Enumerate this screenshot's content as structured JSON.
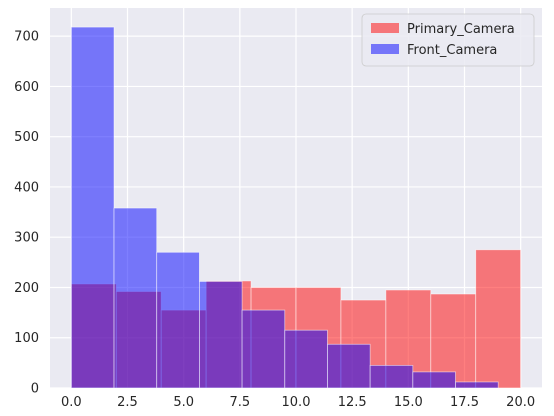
{
  "chart_data": {
    "type": "bar",
    "subtype": "overlaid-histogram",
    "title": "",
    "xlabel": "",
    "ylabel": "",
    "xlim": [
      -0.95,
      20.95
    ],
    "ylim": [
      0,
      756
    ],
    "x_ticks": [
      0.0,
      2.5,
      5.0,
      7.5,
      10.0,
      12.5,
      15.0,
      17.5,
      20.0
    ],
    "x_tick_labels": [
      "0.0",
      "2.5",
      "5.0",
      "7.5",
      "10.0",
      "12.5",
      "15.0",
      "17.5",
      "20.0"
    ],
    "y_ticks": [
      0,
      100,
      200,
      300,
      400,
      500,
      600,
      700
    ],
    "y_tick_labels": [
      "0",
      "100",
      "200",
      "300",
      "400",
      "500",
      "600",
      "700"
    ],
    "grid": true,
    "background": "#eaeaf2",
    "legend": {
      "placement": "top-right",
      "entries": [
        "Primary_Camera",
        "Front_Camera"
      ]
    },
    "series": [
      {
        "name": "Primary_Camera",
        "color": "#ff0000",
        "opacity": 0.5,
        "bin_edges": [
          0,
          2,
          4,
          6,
          8,
          10,
          12,
          14,
          16,
          18,
          20
        ],
        "values": [
          207,
          192,
          155,
          213,
          200,
          200,
          175,
          195,
          187,
          275
        ]
      },
      {
        "name": "Front_Camera",
        "color": "#0000ff",
        "opacity": 0.5,
        "bin_edges": [
          0,
          1.9,
          3.8,
          5.7,
          7.6,
          9.5,
          11.4,
          13.3,
          15.2,
          17.1,
          19.0
        ],
        "values": [
          718,
          358,
          270,
          212,
          155,
          115,
          87,
          45,
          32,
          12
        ]
      }
    ]
  }
}
